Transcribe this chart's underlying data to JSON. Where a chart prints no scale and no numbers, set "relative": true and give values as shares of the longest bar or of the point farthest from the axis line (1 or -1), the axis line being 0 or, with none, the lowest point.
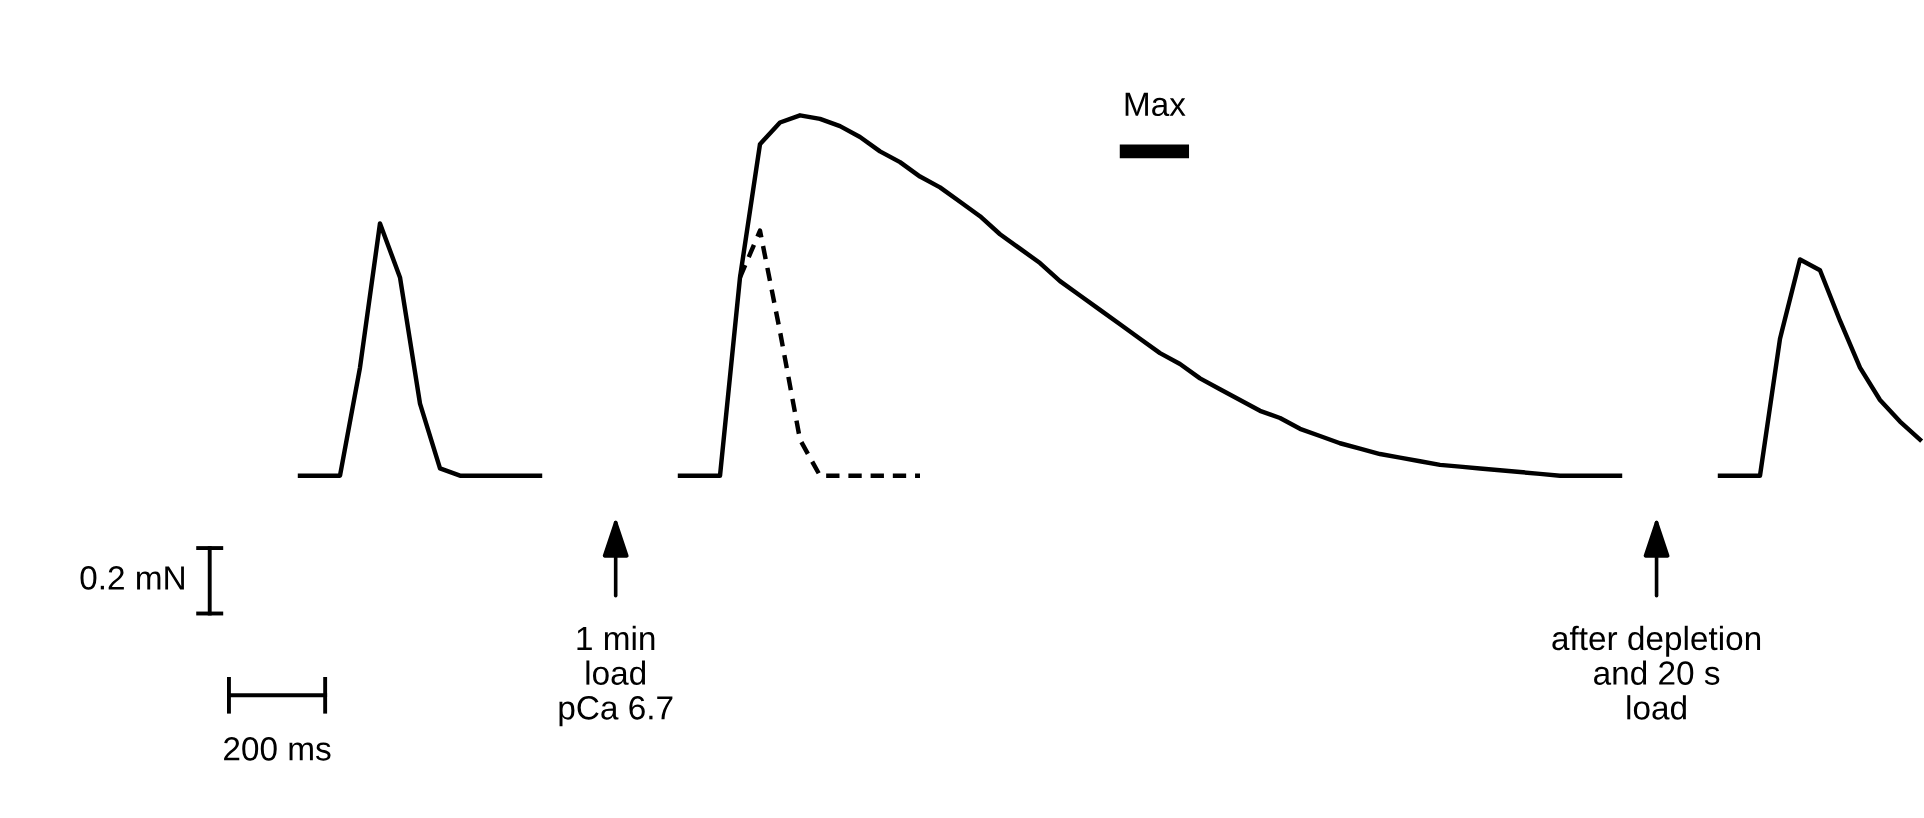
{
  "chart_data": {
    "type": "line",
    "relative": true,
    "marker": "none",
    "categories": [
      null,
      null,
      null,
      null,
      null,
      null,
      null,
      null,
      null,
      null,
      null,
      null,
      null,
      null,
      null,
      null,
      null,
      null,
      null,
      null,
      null,
      null,
      null,
      null,
      null,
      null,
      null,
      null,
      null,
      null,
      null,
      null,
      null,
      null,
      null,
      null,
      null,
      null,
      null,
      null,
      null,
      null,
      null,
      null,
      null,
      null,
      null,
      null,
      null,
      null,
      null,
      null,
      null,
      null,
      null,
      null,
      null,
      null,
      null,
      null,
      null,
      null,
      null,
      null,
      null,
      null,
      null,
      null,
      null,
      null,
      null,
      null,
      null,
      null,
      null,
      null,
      null,
      null,
      null,
      null,
      null,
      null
    ],
    "series": [
      {
        "color": "#000000",
        "line_style": "solid",
        "values": [
          0,
          0,
          0,
          0.3,
          0.7,
          0.55,
          0.2,
          0.02,
          0,
          0,
          0,
          0,
          0,
          null,
          null,
          null,
          null,
          null,
          null,
          null,
          null,
          null,
          null,
          null,
          null,
          null,
          null,
          null,
          null,
          null,
          null,
          null,
          null,
          null,
          null,
          null,
          null,
          null,
          null,
          null,
          null,
          null,
          null,
          null,
          null,
          null,
          null,
          null,
          null,
          null,
          null,
          null,
          null,
          null,
          null,
          null,
          null,
          null,
          null,
          null,
          null,
          null,
          null,
          null,
          null,
          null,
          null,
          null,
          null,
          null,
          null,
          null,
          null,
          null,
          null,
          null,
          null,
          null,
          null,
          null,
          null,
          null
        ]
      },
      {
        "color": "#000000",
        "line_style": "solid",
        "values": [
          null,
          null,
          null,
          null,
          null,
          null,
          null,
          null,
          null,
          null,
          null,
          null,
          null,
          null,
          null,
          null,
          null,
          null,
          null,
          0,
          0,
          0,
          0.55,
          0.92,
          0.98,
          1.0,
          0.99,
          0.97,
          0.94,
          0.9,
          0.87,
          0.83,
          0.8,
          0.76,
          0.72,
          0.67,
          0.63,
          0.59,
          0.54,
          0.5,
          0.46,
          0.42,
          0.38,
          0.34,
          0.31,
          0.27,
          0.24,
          0.21,
          0.18,
          0.16,
          0.13,
          0.11,
          0.09,
          0.075,
          0.06,
          0.05,
          0.04,
          0.03,
          0.025,
          0.02,
          0.015,
          0.01,
          0.005,
          0,
          0,
          0,
          0,
          null,
          null,
          null,
          null,
          null,
          null,
          null,
          null,
          null,
          null,
          null,
          null,
          null,
          null,
          null
        ]
      },
      {
        "color": "#000000",
        "line_style": "dashed",
        "values": [
          null,
          null,
          null,
          null,
          null,
          null,
          null,
          null,
          null,
          null,
          null,
          null,
          null,
          null,
          null,
          null,
          null,
          null,
          null,
          null,
          null,
          null,
          0.55,
          0.68,
          0.4,
          0.1,
          0,
          0,
          0,
          0,
          0,
          0,
          null,
          null,
          null,
          null,
          null,
          null,
          null,
          null,
          null,
          null,
          null,
          null,
          null,
          null,
          null,
          null,
          null,
          null,
          null,
          null,
          null,
          null,
          null,
          null,
          null,
          null,
          null,
          null,
          null,
          null,
          null,
          null,
          null,
          null,
          null,
          null,
          null,
          null,
          null,
          null,
          null,
          null,
          null,
          null,
          null,
          null,
          null,
          null,
          null,
          null
        ]
      },
      {
        "color": "#000000",
        "line_style": "solid",
        "values": [
          null,
          null,
          null,
          null,
          null,
          null,
          null,
          null,
          null,
          null,
          null,
          null,
          null,
          null,
          null,
          null,
          null,
          null,
          null,
          null,
          null,
          null,
          null,
          null,
          null,
          null,
          null,
          null,
          null,
          null,
          null,
          null,
          null,
          null,
          null,
          null,
          null,
          null,
          null,
          null,
          null,
          null,
          null,
          null,
          null,
          null,
          null,
          null,
          null,
          null,
          null,
          null,
          null,
          null,
          null,
          null,
          null,
          null,
          null,
          null,
          null,
          null,
          null,
          null,
          null,
          null,
          null,
          null,
          null,
          null,
          null,
          0,
          0,
          0,
          0.38,
          0.6,
          0.57,
          0.43,
          0.3,
          0.21,
          0.15,
          0.1
        ]
      }
    ],
    "annotations": [
      "Max",
      "1 min\nload\npCa 6.7",
      "after depletion\nand 20 s\nload",
      "0.2 mN",
      "200 ms"
    ]
  }
}
